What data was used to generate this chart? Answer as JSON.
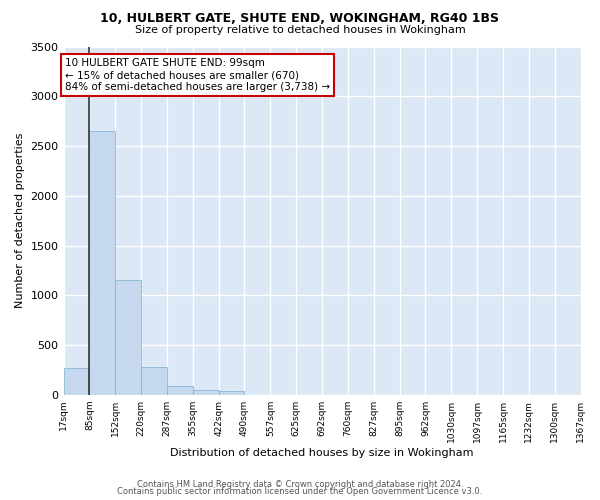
{
  "title": "10, HULBERT GATE, SHUTE END, WOKINGHAM, RG40 1BS",
  "subtitle": "Size of property relative to detached houses in Wokingham",
  "xlabel": "Distribution of detached houses by size in Wokingham",
  "ylabel": "Number of detached properties",
  "bar_color": "#c5d8ee",
  "bar_edge_color": "#7aafd4",
  "background_color": "#dce8f5",
  "fig_background_color": "#ffffff",
  "grid_color": "#ffffff",
  "bins": [
    "17sqm",
    "85sqm",
    "152sqm",
    "220sqm",
    "287sqm",
    "355sqm",
    "422sqm",
    "490sqm",
    "557sqm",
    "625sqm",
    "692sqm",
    "760sqm",
    "827sqm",
    "895sqm",
    "962sqm",
    "1030sqm",
    "1097sqm",
    "1165sqm",
    "1232sqm",
    "1300sqm",
    "1367sqm"
  ],
  "values": [
    270,
    2650,
    1150,
    280,
    90,
    50,
    35,
    0,
    0,
    0,
    0,
    0,
    0,
    0,
    0,
    0,
    0,
    0,
    0,
    0
  ],
  "ylim": [
    0,
    3500
  ],
  "yticks": [
    0,
    500,
    1000,
    1500,
    2000,
    2500,
    3000,
    3500
  ],
  "annotation_text": "10 HULBERT GATE SHUTE END: 99sqm\n← 15% of detached houses are smaller (670)\n84% of semi-detached houses are larger (3,738) →",
  "annotation_box_color": "#ffffff",
  "annotation_box_edge": "#cc0000",
  "vline_x_data": 1,
  "footer1": "Contains HM Land Registry data © Crown copyright and database right 2024.",
  "footer2": "Contains public sector information licensed under the Open Government Licence v3.0."
}
